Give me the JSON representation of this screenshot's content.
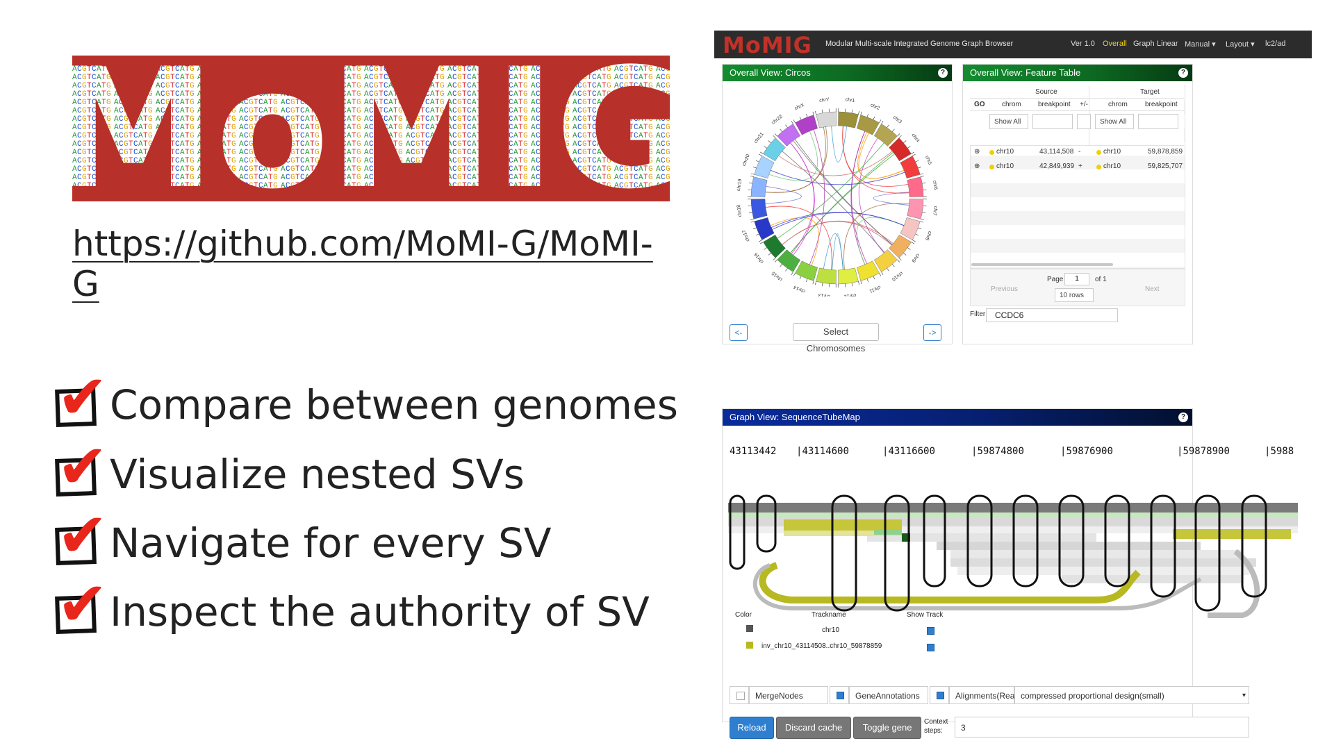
{
  "slide": {
    "logo_text": "MoMIG",
    "repo_url": "https://github.com/MoMI-G/MoMI-G",
    "checklist": [
      "Compare between genomes",
      "Visualize nested SVs",
      "Navigate for every SV",
      "Inspect the authority of SV"
    ]
  },
  "app": {
    "brand": "MoMIG",
    "subtitle": "Modular Multi-scale Integrated Genome Graph Browser",
    "nav": {
      "version": "Ver 1.0",
      "items": [
        "Overall",
        "Graph",
        "Linear",
        "Manual ▾",
        "Layout ▾",
        "lc2/ad"
      ],
      "active": "Overall",
      "active_color": "#f2d21b"
    },
    "circos": {
      "title": "Overall View: Circos",
      "chromosomes": [
        "chr1",
        "chr2",
        "chr3",
        "chr4",
        "chr5",
        "chr6",
        "chr7",
        "chr8",
        "chr9",
        "chr10",
        "chr11",
        "chr12",
        "chr13",
        "chr14",
        "chr15",
        "chr16",
        "chr17",
        "chr18",
        "chr19",
        "chr20",
        "chr21",
        "chr22",
        "chrX",
        "chrY"
      ],
      "prev_button": "<-",
      "next_button": "->",
      "select_button": "Select Chromosomes"
    },
    "feature_table": {
      "title": "Overall View: Feature Table",
      "group_source": "Source",
      "group_target": "Target",
      "columns": [
        "GO",
        "chrom",
        "breakpoint",
        "+/-",
        "chrom",
        "breakpoint"
      ],
      "filter_select": "Show All",
      "rows": [
        {
          "expand": "⊕",
          "src_chrom": "chr10",
          "src_bp": "43,114,508",
          "strand": "-",
          "tgt_chrom": "chr10",
          "tgt_bp": "59,878,859"
        },
        {
          "expand": "⊕",
          "src_chrom": "chr10",
          "src_bp": "42,849,939",
          "strand": "+",
          "tgt_chrom": "chr10",
          "tgt_bp": "59,825,707"
        }
      ],
      "previous": "Previous",
      "next": "Next",
      "page_label": "Page",
      "page_value": "1",
      "of_label": "of 1",
      "rows_select": "10 rows",
      "filter_label": "Filter:",
      "filter_value": "CCDC6"
    },
    "graph": {
      "title": "Graph View: SequenceTubeMap",
      "coords": [
        "43113442",
        "43114600",
        "43116600",
        "59874800",
        "59876900",
        "59878900",
        "5988"
      ],
      "legend": {
        "header_color": "Color",
        "header_track": "Trackname",
        "header_show": "Show Track",
        "tracks": [
          {
            "name": "chr10",
            "color": "#555555"
          },
          {
            "name": "inv_chr10_43114508..chr10_59878859",
            "color": "#b8b820"
          }
        ]
      },
      "options": [
        "MergeNodes",
        "GeneAnnotations",
        "Alignments(Reads)"
      ],
      "alignment_mode": "compressed proportional design(small)",
      "buttons": [
        "Reload",
        "Discard cache",
        "Toggle gene"
      ],
      "context_label": "Context steps:",
      "context_value": "3"
    }
  }
}
